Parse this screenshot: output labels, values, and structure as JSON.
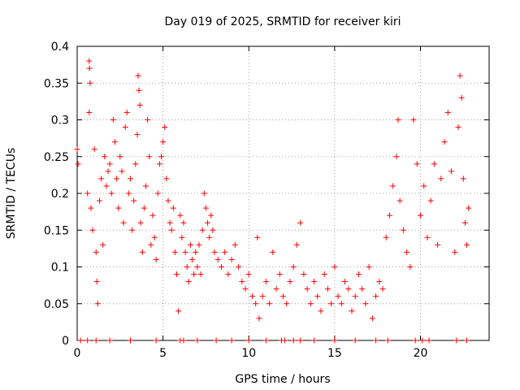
{
  "chart_data": {
    "type": "scatter",
    "title": "Day 019 of 2025, SRMTID for receiver kiri",
    "xlabel": "GPS time / hours",
    "ylabel": "SRMTID / TECUs",
    "xlim": [
      0,
      24
    ],
    "ylim": [
      0,
      0.4
    ],
    "grid": true,
    "marker": "+",
    "color": "#ff0000",
    "x_ticks": [
      0,
      5,
      10,
      15,
      20
    ],
    "x_tick_labels": [
      "0",
      "5",
      "10",
      "15",
      "20"
    ],
    "y_ticks": [
      0,
      0.05,
      0.1,
      0.15,
      0.2,
      0.25,
      0.3,
      0.35,
      0.4
    ],
    "y_tick_labels": [
      "0",
      "0.05",
      "0.1",
      "0.15",
      "0.2",
      "0.25",
      "0.3",
      "0.35",
      "0.4"
    ],
    "series": [
      {
        "name": "SRMTID",
        "points": [
          [
            0.0,
            0.26
          ],
          [
            0.05,
            0.24
          ],
          [
            0.7,
            0.38
          ],
          [
            0.72,
            0.37
          ],
          [
            0.75,
            0.35
          ],
          [
            0.7,
            0.31
          ],
          [
            0.6,
            0.2
          ],
          [
            0.8,
            0.18
          ],
          [
            0.9,
            0.15
          ],
          [
            1.0,
            0.26
          ],
          [
            1.1,
            0.12
          ],
          [
            1.15,
            0.08
          ],
          [
            1.2,
            0.05
          ],
          [
            1.3,
            0.19
          ],
          [
            1.4,
            0.22
          ],
          [
            1.5,
            0.13
          ],
          [
            1.6,
            0.25
          ],
          [
            1.7,
            0.21
          ],
          [
            1.8,
            0.23
          ],
          [
            1.9,
            0.24
          ],
          [
            2.0,
            0.2
          ],
          [
            2.1,
            0.3
          ],
          [
            2.2,
            0.27
          ],
          [
            2.3,
            0.22
          ],
          [
            2.4,
            0.18
          ],
          [
            2.5,
            0.25
          ],
          [
            2.6,
            0.23
          ],
          [
            2.7,
            0.16
          ],
          [
            2.8,
            0.29
          ],
          [
            2.9,
            0.31
          ],
          [
            3.0,
            0.2
          ],
          [
            3.1,
            0.22
          ],
          [
            3.2,
            0.15
          ],
          [
            3.3,
            0.19
          ],
          [
            3.4,
            0.24
          ],
          [
            3.5,
            0.28
          ],
          [
            3.55,
            0.36
          ],
          [
            3.6,
            0.34
          ],
          [
            3.65,
            0.32
          ],
          [
            3.7,
            0.16
          ],
          [
            3.8,
            0.12
          ],
          [
            3.9,
            0.18
          ],
          [
            4.0,
            0.21
          ],
          [
            4.1,
            0.3
          ],
          [
            4.2,
            0.25
          ],
          [
            4.3,
            0.13
          ],
          [
            4.4,
            0.17
          ],
          [
            4.5,
            0.14
          ],
          [
            4.6,
            0.11
          ],
          [
            4.7,
            0.2
          ],
          [
            4.8,
            0.24
          ],
          [
            4.9,
            0.25
          ],
          [
            5.0,
            0.27
          ],
          [
            5.1,
            0.29
          ],
          [
            5.2,
            0.22
          ],
          [
            5.3,
            0.19
          ],
          [
            5.4,
            0.16
          ],
          [
            5.5,
            0.15
          ],
          [
            5.6,
            0.18
          ],
          [
            5.7,
            0.12
          ],
          [
            5.8,
            0.09
          ],
          [
            5.9,
            0.04
          ],
          [
            6.0,
            0.17
          ],
          [
            6.1,
            0.14
          ],
          [
            6.2,
            0.16
          ],
          [
            6.3,
            0.12
          ],
          [
            6.4,
            0.1
          ],
          [
            6.5,
            0.08
          ],
          [
            6.6,
            0.13
          ],
          [
            6.7,
            0.11
          ],
          [
            6.8,
            0.09
          ],
          [
            6.9,
            0.12
          ],
          [
            7.0,
            0.1
          ],
          [
            7.1,
            0.13
          ],
          [
            7.2,
            0.09
          ],
          [
            7.3,
            0.15
          ],
          [
            7.4,
            0.2
          ],
          [
            7.5,
            0.18
          ],
          [
            7.6,
            0.16
          ],
          [
            7.7,
            0.14
          ],
          [
            7.8,
            0.17
          ],
          [
            7.9,
            0.15
          ],
          [
            8.0,
            0.12
          ],
          [
            8.2,
            0.11
          ],
          [
            8.4,
            0.1
          ],
          [
            8.6,
            0.12
          ],
          [
            8.8,
            0.09
          ],
          [
            9.0,
            0.11
          ],
          [
            9.2,
            0.13
          ],
          [
            9.4,
            0.1
          ],
          [
            9.6,
            0.08
          ],
          [
            9.8,
            0.07
          ],
          [
            10.0,
            0.09
          ],
          [
            10.2,
            0.06
          ],
          [
            10.4,
            0.05
          ],
          [
            10.5,
            0.14
          ],
          [
            10.6,
            0.03
          ],
          [
            10.8,
            0.06
          ],
          [
            11.0,
            0.08
          ],
          [
            11.2,
            0.05
          ],
          [
            11.4,
            0.12
          ],
          [
            11.6,
            0.07
          ],
          [
            11.8,
            0.09
          ],
          [
            12.0,
            0.06
          ],
          [
            12.2,
            0.05
          ],
          [
            12.4,
            0.08
          ],
          [
            12.6,
            0.1
          ],
          [
            12.8,
            0.13
          ],
          [
            13.0,
            0.16
          ],
          [
            13.2,
            0.09
          ],
          [
            13.4,
            0.07
          ],
          [
            13.6,
            0.05
          ],
          [
            13.8,
            0.08
          ],
          [
            14.0,
            0.06
          ],
          [
            14.2,
            0.04
          ],
          [
            14.4,
            0.09
          ],
          [
            14.6,
            0.07
          ],
          [
            14.8,
            0.05
          ],
          [
            15.0,
            0.1
          ],
          [
            15.2,
            0.06
          ],
          [
            15.4,
            0.05
          ],
          [
            15.6,
            0.08
          ],
          [
            15.8,
            0.07
          ],
          [
            16.0,
            0.04
          ],
          [
            16.2,
            0.06
          ],
          [
            16.4,
            0.09
          ],
          [
            16.6,
            0.07
          ],
          [
            16.8,
            0.05
          ],
          [
            17.0,
            0.1
          ],
          [
            17.2,
            0.03
          ],
          [
            17.4,
            0.06
          ],
          [
            17.6,
            0.08
          ],
          [
            17.8,
            0.07
          ],
          [
            18.0,
            0.14
          ],
          [
            18.2,
            0.17
          ],
          [
            18.4,
            0.21
          ],
          [
            18.6,
            0.25
          ],
          [
            18.7,
            0.3
          ],
          [
            18.8,
            0.19
          ],
          [
            19.0,
            0.15
          ],
          [
            19.2,
            0.12
          ],
          [
            19.4,
            0.1
          ],
          [
            19.6,
            0.3
          ],
          [
            19.8,
            0.24
          ],
          [
            20.0,
            0.17
          ],
          [
            20.2,
            0.21
          ],
          [
            20.4,
            0.14
          ],
          [
            20.6,
            0.19
          ],
          [
            20.8,
            0.24
          ],
          [
            21.0,
            0.13
          ],
          [
            21.2,
            0.22
          ],
          [
            21.4,
            0.27
          ],
          [
            21.6,
            0.31
          ],
          [
            21.8,
            0.23
          ],
          [
            22.0,
            0.12
          ],
          [
            22.2,
            0.29
          ],
          [
            22.3,
            0.36
          ],
          [
            22.4,
            0.33
          ],
          [
            22.5,
            0.22
          ],
          [
            22.6,
            0.16
          ],
          [
            22.7,
            0.13
          ],
          [
            22.8,
            0.18
          ]
        ]
      }
    ],
    "zero_markers_x": [
      0.2,
      0.6,
      1.1,
      1.9,
      3.1,
      4.6,
      6.0,
      6.2,
      7.0,
      8.1,
      9.0,
      10.0,
      11.0,
      11.9,
      12.1,
      12.6,
      13.0,
      13.8,
      15.0,
      16.2,
      17.4,
      18.1,
      19.7,
      20.1,
      20.5,
      22.1,
      22.7
    ]
  }
}
